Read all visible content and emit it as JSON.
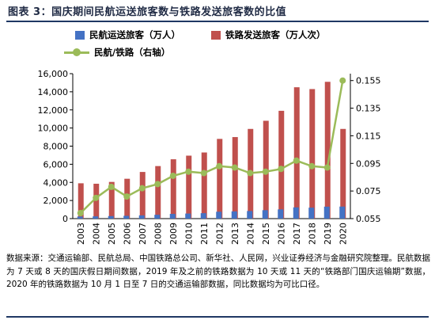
{
  "header": {
    "title": "图表 3：国庆期间民航运送旅客数与铁路发送旅客数的比值"
  },
  "colors": {
    "civil": "#4472c4",
    "rail": "#c0504d",
    "ratio_line": "#9bbb59",
    "ratio_marker": "#9bbb59"
  },
  "chart_data": {
    "type": "bar",
    "categories": [
      "2003",
      "2004",
      "2005",
      "2006",
      "2007",
      "2008",
      "2009",
      "2010",
      "2011",
      "2012",
      "2013",
      "2014",
      "2015",
      "2016",
      "2017",
      "2018",
      "2019",
      "2020"
    ],
    "series": [
      {
        "name": "民航运送旅客（万人）",
        "type": "bar",
        "axis": "left",
        "values": [
          230,
          250,
          280,
          310,
          360,
          420,
          520,
          560,
          600,
          760,
          800,
          840,
          930,
          1020,
          1240,
          1210,
          1320,
          1330
        ]
      },
      {
        "name": "铁路发送旅客（万人次）",
        "type": "bar",
        "axis": "left",
        "values": [
          3900,
          3850,
          4050,
          4400,
          5150,
          5800,
          6550,
          6950,
          7300,
          8800,
          9000,
          9900,
          10800,
          11900,
          14500,
          14300,
          15100,
          9900
        ]
      },
      {
        "name": "民航/铁路（右轴）",
        "type": "line",
        "axis": "right",
        "values": [
          0.059,
          0.07,
          0.078,
          0.071,
          0.077,
          0.08,
          0.086,
          0.089,
          0.088,
          0.093,
          0.092,
          0.088,
          0.089,
          0.091,
          0.097,
          0.093,
          0.092,
          0.155
        ]
      }
    ],
    "y_left": {
      "min": 0,
      "max": 16000,
      "ticks": [
        "0",
        "2,000",
        "4,000",
        "6,000",
        "8,000",
        "10,000",
        "12,000",
        "14,000",
        "16,000"
      ]
    },
    "y_right": {
      "min": 0.055,
      "max": 0.16,
      "ticks": [
        "0.055",
        "0.075",
        "0.095",
        "0.115",
        "0.135",
        "0.155"
      ]
    },
    "grid": false,
    "legend_position": "top-left"
  },
  "source": {
    "text": "数据来源：交通运输部、民航总局、中国铁路总公司、新华社、人民网，兴业证券经济与金融研究院整理。民航数据为 7 天或 8 天的国庆假日期间数据，2019 年及之前的铁路数据为 10 天或 11 天的“铁路部门国庆运输期”数据，2020 年的铁路数据为 10 月 1 日至 7 日的交通运输部数据，同比数据均为可比口径。"
  }
}
